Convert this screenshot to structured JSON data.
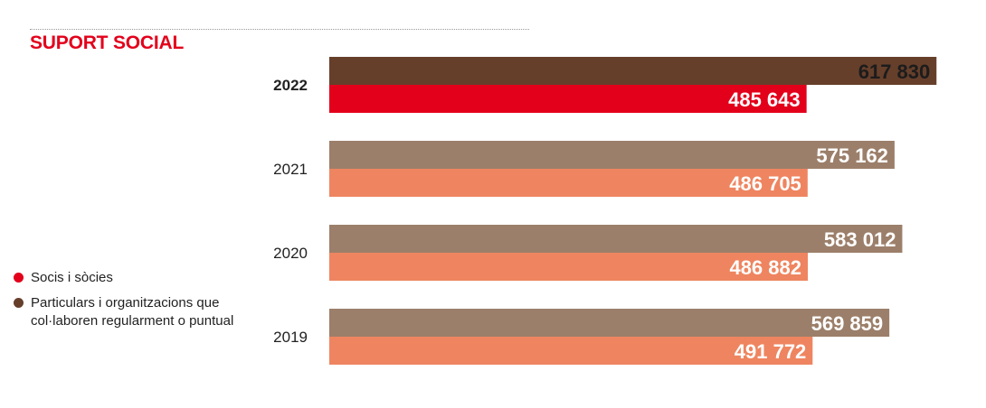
{
  "title": "SUPORT SOCIAL",
  "legend": {
    "items": [
      {
        "label": "Socis i sòcies",
        "color": "#e3001b"
      },
      {
        "label": "Particulars i organitzacions que col·laboren regularment o puntual",
        "color": "#663f2b"
      }
    ]
  },
  "chart_data": {
    "type": "bar",
    "orientation": "horizontal",
    "title": "SUPORT SOCIAL",
    "categories": [
      "2022",
      "2021",
      "2020",
      "2019"
    ],
    "highlight_category": "2022",
    "series": [
      {
        "name": "Particulars i organitzacions que col·laboren regularment o puntual",
        "values": [
          617830,
          575162,
          583012,
          569859
        ],
        "labels": [
          "617 830",
          "575 162",
          "583 012",
          "569 859"
        ],
        "colors": [
          "#663f2b",
          "#9c7f6a",
          "#9c7f6a",
          "#9c7f6a"
        ],
        "label_colors": [
          "#1c1c1c",
          "#ffffff",
          "#ffffff",
          "#ffffff"
        ]
      },
      {
        "name": "Socis i sòcies",
        "values": [
          485643,
          486705,
          486882,
          491772
        ],
        "labels": [
          "485 643",
          "486 705",
          "486 882",
          "491 772"
        ],
        "colors": [
          "#e3001b",
          "#ee8560",
          "#ee8560",
          "#ee8560"
        ],
        "label_colors": [
          "#ffffff",
          "#ffffff",
          "#ffffff",
          "#ffffff"
        ]
      }
    ],
    "xlim": [
      0,
      800000
    ],
    "grid": false,
    "legend_position": "bottom-left"
  }
}
